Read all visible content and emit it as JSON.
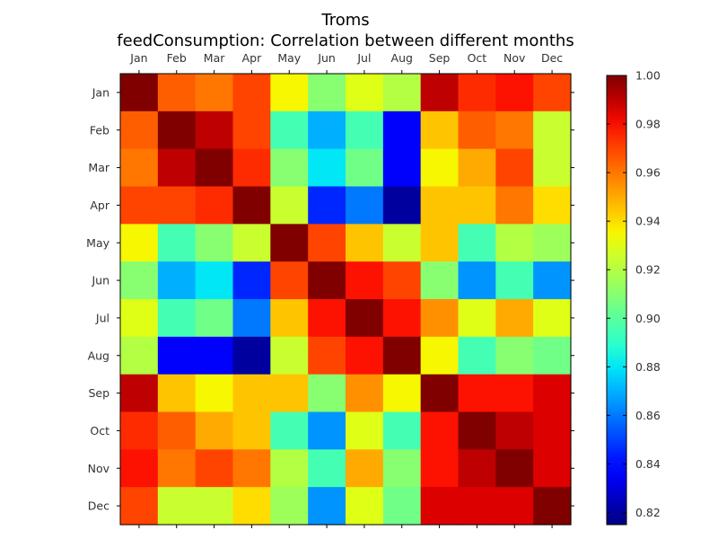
{
  "chart_data": {
    "type": "heatmap",
    "title": "Troms",
    "subtitle": "feedConsumption: Correlation between different months",
    "x_categories": [
      "Jan",
      "Feb",
      "Mar",
      "Apr",
      "May",
      "Jun",
      "Jul",
      "Aug",
      "Sep",
      "Oct",
      "Nov",
      "Dec"
    ],
    "y_categories": [
      "Jan",
      "Feb",
      "Mar",
      "Apr",
      "May",
      "Jun",
      "Jul",
      "Aug",
      "Sep",
      "Oct",
      "Nov",
      "Dec"
    ],
    "values": [
      [
        1.0,
        0.965,
        0.96,
        0.97,
        0.935,
        0.91,
        0.93,
        0.92,
        0.99,
        0.975,
        0.98,
        0.97
      ],
      [
        0.965,
        1.0,
        0.99,
        0.97,
        0.895,
        0.87,
        0.895,
        0.835,
        0.945,
        0.965,
        0.96,
        0.925
      ],
      [
        0.96,
        0.99,
        1.0,
        0.975,
        0.91,
        0.88,
        0.905,
        0.835,
        0.935,
        0.95,
        0.97,
        0.925
      ],
      [
        0.97,
        0.97,
        0.975,
        1.0,
        0.925,
        0.845,
        0.86,
        0.82,
        0.945,
        0.945,
        0.96,
        0.94
      ],
      [
        0.935,
        0.895,
        0.91,
        0.925,
        1.0,
        0.97,
        0.945,
        0.925,
        0.945,
        0.895,
        0.92,
        0.915
      ],
      [
        0.91,
        0.87,
        0.88,
        0.845,
        0.97,
        1.0,
        0.98,
        0.97,
        0.91,
        0.865,
        0.895,
        0.865
      ],
      [
        0.93,
        0.895,
        0.905,
        0.86,
        0.945,
        0.98,
        1.0,
        0.98,
        0.955,
        0.93,
        0.95,
        0.93
      ],
      [
        0.92,
        0.835,
        0.835,
        0.82,
        0.925,
        0.97,
        0.98,
        1.0,
        0.935,
        0.895,
        0.91,
        0.905
      ],
      [
        0.99,
        0.945,
        0.935,
        0.945,
        0.945,
        0.91,
        0.955,
        0.935,
        1.0,
        0.98,
        0.98,
        0.985
      ],
      [
        0.975,
        0.965,
        0.95,
        0.945,
        0.895,
        0.865,
        0.93,
        0.895,
        0.98,
        1.0,
        0.99,
        0.985
      ],
      [
        0.98,
        0.96,
        0.97,
        0.96,
        0.92,
        0.895,
        0.95,
        0.91,
        0.98,
        0.99,
        1.0,
        0.985
      ],
      [
        0.97,
        0.925,
        0.925,
        0.94,
        0.915,
        0.865,
        0.93,
        0.905,
        0.985,
        0.985,
        0.985,
        1.0
      ]
    ],
    "colormap": "jet",
    "colorbar": {
      "range": [
        0.815,
        1.0
      ],
      "ticks": [
        0.82,
        0.84,
        0.86,
        0.88,
        0.9,
        0.92,
        0.94,
        0.96,
        0.98,
        1.0
      ],
      "tick_labels": [
        "0.82",
        "0.84",
        "0.86",
        "0.88",
        "0.90",
        "0.92",
        "0.94",
        "0.96",
        "0.98",
        "1.00"
      ]
    },
    "x_tick_position": "top",
    "grid": false
  }
}
